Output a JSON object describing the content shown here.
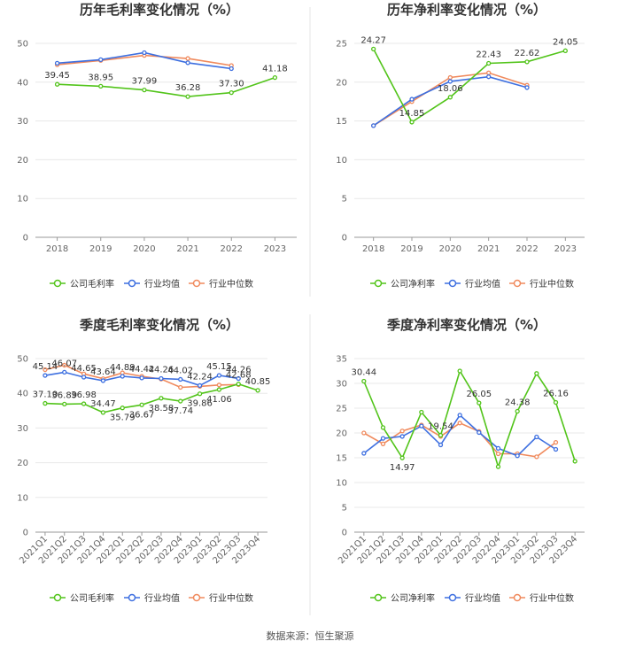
{
  "colors": {
    "company": "#52c41a",
    "industry_avg": "#3d6fe0",
    "industry_median": "#f08a5d",
    "axis": "#999999",
    "grid": "#e8e8e8",
    "divider": "#e6e6e6"
  },
  "source": "数据来源：恒生聚源",
  "chart_data": [
    {
      "type": "line",
      "title": "历年毛利率变化情况（%）",
      "categories": [
        "2018",
        "2019",
        "2020",
        "2021",
        "2022",
        "2023"
      ],
      "ylim": [
        0,
        50
      ],
      "yticks": [
        0,
        10,
        20,
        30,
        40,
        50
      ],
      "series": [
        {
          "name": "公司毛利率",
          "color_key": "company",
          "values": [
            39.45,
            38.95,
            37.99,
            36.28,
            37.3,
            41.18
          ],
          "labels": [
            "39.45",
            "38.95",
            "37.99",
            "36.28",
            "37.30",
            "41.18"
          ],
          "label_pos": [
            "above",
            "above",
            "above",
            "above",
            "above",
            "above"
          ]
        },
        {
          "name": "行业均值",
          "color_key": "industry_avg",
          "values": [
            44.9,
            45.8,
            47.6,
            45.0,
            43.5,
            null
          ]
        },
        {
          "name": "行业中位数",
          "color_key": "industry_median",
          "values": [
            44.5,
            45.6,
            46.9,
            46.1,
            44.3,
            null
          ]
        }
      ],
      "legend": [
        "公司毛利率",
        "行业均值",
        "行业中位数"
      ]
    },
    {
      "type": "line",
      "title": "历年净利率变化情况（%）",
      "categories": [
        "2018",
        "2019",
        "2020",
        "2021",
        "2022",
        "2023"
      ],
      "ylim": [
        0,
        25
      ],
      "yticks": [
        0,
        5,
        10,
        15,
        20,
        25
      ],
      "series": [
        {
          "name": "公司净利率",
          "color_key": "company",
          "values": [
            24.27,
            14.85,
            18.06,
            22.43,
            22.62,
            24.05
          ],
          "labels": [
            "24.27",
            "14.85",
            "18.06",
            "22.43",
            "22.62",
            "24.05"
          ],
          "label_pos": [
            "above",
            "above",
            "above",
            "above",
            "above",
            "above"
          ]
        },
        {
          "name": "行业均值",
          "color_key": "industry_avg",
          "values": [
            14.4,
            17.8,
            20.1,
            20.7,
            19.3,
            null
          ]
        },
        {
          "name": "行业中位数",
          "color_key": "industry_median",
          "values": [
            14.4,
            17.5,
            20.6,
            21.2,
            19.6,
            null
          ]
        }
      ],
      "legend": [
        "公司净利率",
        "行业均值",
        "行业中位数"
      ]
    },
    {
      "type": "line",
      "title": "季度毛利率变化情况（%）",
      "categories": [
        "2021Q1",
        "2021Q2",
        "2021Q3",
        "2021Q4",
        "2022Q1",
        "2022Q2",
        "2022Q3",
        "2022Q4",
        "2023Q1",
        "2023Q2",
        "2023Q3",
        "2023Q4"
      ],
      "ylim": [
        0,
        50
      ],
      "yticks": [
        0,
        10,
        20,
        30,
        40,
        50
      ],
      "rotate_xticks": true,
      "series": [
        {
          "name": "公司毛利率",
          "color_key": "company",
          "values": [
            37.1,
            36.89,
            36.98,
            34.47,
            35.79,
            36.67,
            38.58,
            37.74,
            39.86,
            41.06,
            42.68,
            40.85
          ],
          "labels": [
            "37.10",
            "36.89",
            "36.98",
            "34.47",
            "35.79",
            "36.67",
            "38.58",
            "37.74",
            "39.86",
            "41.06",
            "42.68",
            "40.85"
          ],
          "label_pos": [
            "above",
            "above",
            "above",
            "above",
            "below",
            "below",
            "below",
            "below",
            "below",
            "below",
            "above",
            "above"
          ]
        },
        {
          "name": "行业均值",
          "color_key": "industry_avg",
          "values": [
            45.14,
            46.07,
            44.65,
            43.64,
            44.89,
            44.42,
            44.26,
            44.02,
            42.24,
            45.15,
            44.26,
            null
          ],
          "labels": [
            "45.14",
            "46.07",
            "44.65",
            "43.64",
            "44.89",
            "44.42",
            "44.26",
            "44.02",
            "42.24",
            "45.15",
            "44.26",
            ""
          ],
          "label_pos": [
            "above",
            "above",
            "above",
            "above",
            "above",
            "above",
            "above",
            "above",
            "above",
            "above",
            "above",
            "above"
          ]
        },
        {
          "name": "行业中位数",
          "color_key": "industry_median",
          "values": [
            46.8,
            48.1,
            45.6,
            44.2,
            45.9,
            44.9,
            44.1,
            41.7,
            42.0,
            42.4,
            42.5,
            null
          ]
        }
      ],
      "legend": [
        "公司毛利率",
        "行业均值",
        "行业中位数"
      ]
    },
    {
      "type": "line",
      "title": "季度净利率变化情况（%）",
      "categories": [
        "2021Q1",
        "2021Q2",
        "2021Q3",
        "2021Q4",
        "2022Q1",
        "2022Q2",
        "2022Q3",
        "2022Q4",
        "2023Q1",
        "2023Q2",
        "2023Q3",
        "2023Q4"
      ],
      "ylim": [
        0,
        35
      ],
      "yticks": [
        0,
        5,
        10,
        15,
        20,
        25,
        30,
        35
      ],
      "rotate_xticks": true,
      "series": [
        {
          "name": "公司净利率",
          "color_key": "company",
          "values": [
            30.44,
            21.1,
            14.97,
            24.2,
            19.54,
            32.5,
            26.05,
            13.2,
            24.38,
            32.0,
            26.16,
            14.3
          ],
          "labels": [
            "30.44",
            "",
            "14.97",
            "",
            "19.54",
            "",
            "26.05",
            "",
            "24.38",
            "",
            "26.16",
            ""
          ],
          "label_pos": [
            "above",
            "above",
            "below",
            "above",
            "above",
            "above",
            "above",
            "above",
            "above",
            "above",
            "above",
            "above"
          ]
        },
        {
          "name": "行业均值",
          "color_key": "industry_avg",
          "values": [
            15.9,
            18.9,
            19.3,
            21.4,
            17.6,
            23.6,
            20.1,
            16.9,
            15.4,
            19.2,
            16.7,
            null
          ]
        },
        {
          "name": "行业中位数",
          "color_key": "industry_median",
          "values": [
            20.0,
            17.8,
            20.4,
            21.6,
            19.3,
            22.0,
            20.3,
            15.8,
            15.8,
            15.2,
            18.1,
            null
          ]
        }
      ],
      "legend": [
        "公司净利率",
        "行业均值",
        "行业中位数"
      ]
    }
  ]
}
